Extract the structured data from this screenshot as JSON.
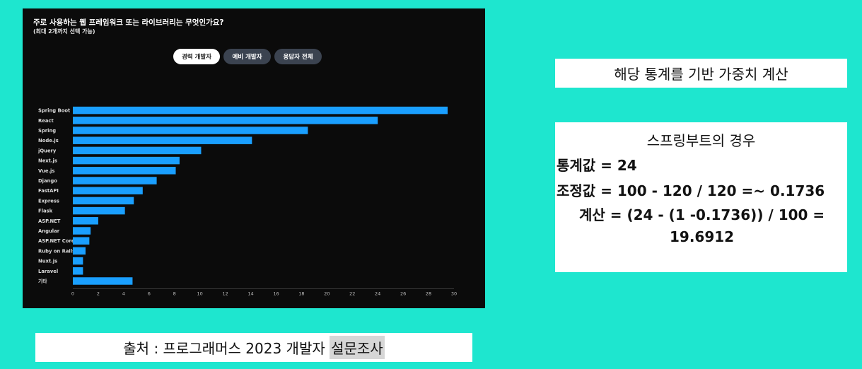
{
  "chart_data": {
    "type": "bar",
    "orientation": "horizontal",
    "title": "주로 사용하는 웹 프레임워크 또는 라이브러리는 무엇인가요?",
    "subtitle": "(최대 2개까지 선택 가능)",
    "tabs": [
      {
        "label": "경력 개발자",
        "active": true
      },
      {
        "label": "예비 개발자",
        "active": false
      },
      {
        "label": "응답자 전체",
        "active": false
      }
    ],
    "categories": [
      "Spring Boot",
      "React",
      "Spring",
      "Node.js",
      "jQuery",
      "Next.js",
      "Vue.js",
      "Django",
      "FastAPI",
      "Express",
      "Flask",
      "ASP.NET",
      "Angular",
      "ASP.NET Core",
      "Ruby on Rails",
      "Nuxt.js",
      "Laravel",
      "기타"
    ],
    "values": [
      29.5,
      24,
      18.5,
      14.1,
      10.1,
      8.4,
      8.1,
      6.6,
      5.5,
      4.8,
      4.1,
      2.0,
      1.4,
      1.3,
      1.0,
      0.8,
      0.8,
      4.7
    ],
    "xlim": [
      0,
      30
    ],
    "xticks": [
      0,
      2,
      4,
      6,
      8,
      10,
      12,
      14,
      16,
      18,
      20,
      22,
      24,
      26,
      28,
      30
    ],
    "bar_color": "#1a9fff",
    "grid": false
  },
  "weight_box": {
    "title": "해당 통계를 기반 가중치 계산"
  },
  "calc_box": {
    "heading": "스프링부트의 경우",
    "stat_line": "통계값 = 24",
    "adjust_line": "조정값 = 100 - 120 / 120 =~ 0.1736",
    "calc_line_1": "계산 = (24 - (1 -0.1736)) / 100 =",
    "calc_line_2": "19.6912"
  },
  "source_box": {
    "prefix": "출처 : 프로그래머스 2023 개발자 ",
    "highlighted": "설문조사"
  }
}
